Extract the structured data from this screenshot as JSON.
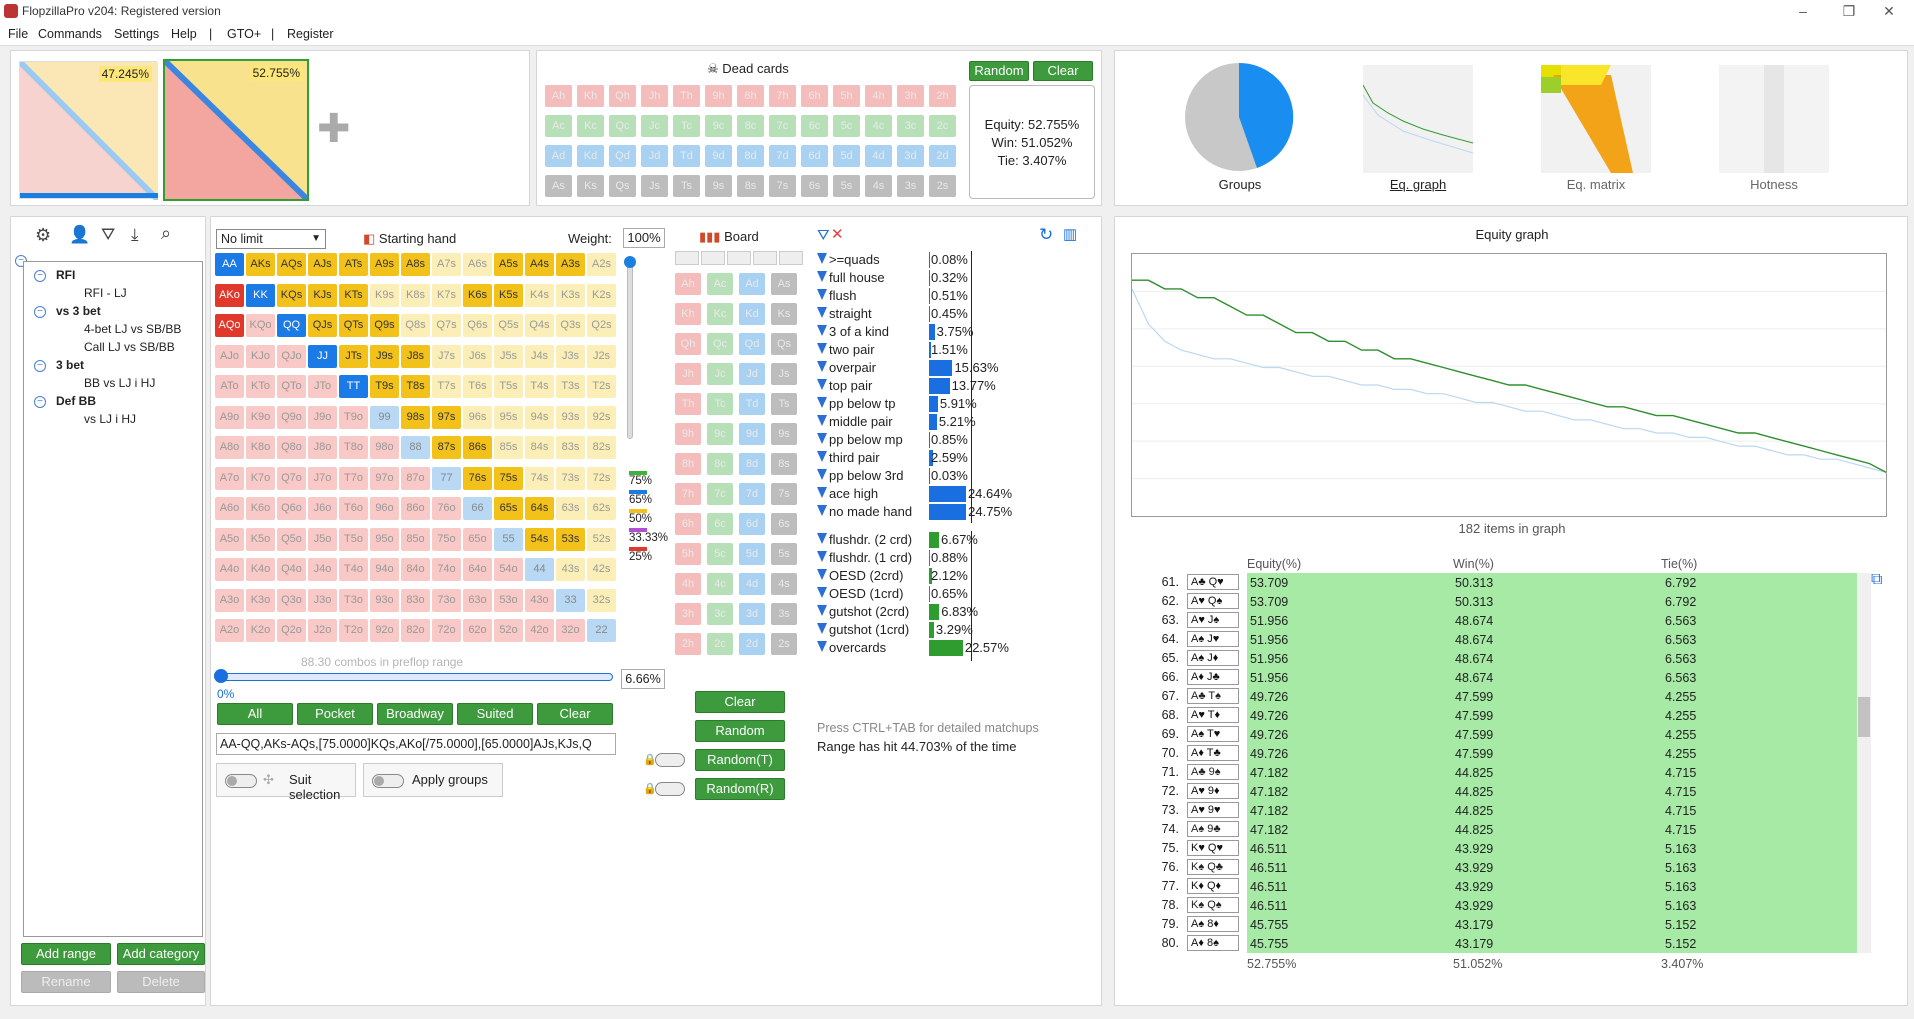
{
  "app": {
    "title": "FlopzillaPro v204: Registered version"
  },
  "menu": [
    "File",
    "Commands",
    "Settings",
    "Help",
    "|",
    "GTO+",
    "|",
    "Register"
  ],
  "ranges": {
    "range1_pct": "47.245%",
    "range2_pct": "52.755%"
  },
  "dead_cards": {
    "title": "Dead cards",
    "random": "Random",
    "clear": "Clear",
    "ranks": [
      "A",
      "K",
      "Q",
      "J",
      "T",
      "9",
      "8",
      "7",
      "6",
      "5",
      "4",
      "3",
      "2"
    ],
    "suits": [
      "h",
      "c",
      "d",
      "s"
    ]
  },
  "equity_box": {
    "equity": "Equity: 52.755%",
    "win": "Win: 51.052%",
    "tie": "Tie: 3.407%"
  },
  "views": {
    "groups": "Groups",
    "eq_graph": "Eq. graph",
    "eq_matrix": "Eq. matrix",
    "hotness": "Hotness"
  },
  "tree": {
    "items": [
      {
        "label": "RFI",
        "bold": true,
        "level": 0
      },
      {
        "label": "RFI - LJ",
        "bold": false,
        "level": 1
      },
      {
        "label": "vs 3 bet",
        "bold": true,
        "level": 0
      },
      {
        "label": "4-bet LJ vs SB/BB",
        "bold": false,
        "level": 1
      },
      {
        "label": "Call LJ vs SB/BB",
        "bold": false,
        "level": 1
      },
      {
        "label": "3 bet",
        "bold": true,
        "level": 0
      },
      {
        "label": "BB vs LJ i HJ",
        "bold": false,
        "level": 1
      },
      {
        "label": "Def BB",
        "bold": true,
        "level": 0
      },
      {
        "label": "vs LJ i HJ",
        "bold": false,
        "level": 1
      }
    ],
    "add_range": "Add range",
    "add_category": "Add category",
    "rename": "Rename",
    "delete": "Delete"
  },
  "matrix": {
    "game": "No limit",
    "starting_hand": "Starting hand",
    "weight_label": "Weight:",
    "weight": "100%",
    "combos_text": "88.30 combos in preflop range",
    "slider_min": "0%",
    "slider_value": "6.66%",
    "legend": [
      "75%",
      "65%",
      "50%",
      "33.33%",
      "25%"
    ],
    "buttons": {
      "all": "All",
      "pocket": "Pocket",
      "broadway": "Broadway",
      "suited": "Suited",
      "clear": "Clear"
    },
    "range_string": "AA-QQ,AKs-AQs,[75.0000]KQs,AKo[/75.0000],[65.0000]AJs,KJs,Q",
    "suit_selection": "Suit selection",
    "apply_groups": "Apply groups"
  },
  "board": {
    "title": "Board",
    "clear": "Clear",
    "random": "Random",
    "random_t": "Random(T)",
    "random_r": "Random(R)"
  },
  "stats": {
    "made": [
      {
        "label": ">=quads",
        "pct": "0.08%",
        "v": 0.08
      },
      {
        "label": "full house",
        "pct": "0.32%",
        "v": 0.32
      },
      {
        "label": "flush",
        "pct": "0.51%",
        "v": 0.51
      },
      {
        "label": "straight",
        "pct": "0.45%",
        "v": 0.45
      },
      {
        "label": "3 of a kind",
        "pct": "3.75%",
        "v": 3.75
      },
      {
        "label": "two pair",
        "pct": "1.51%",
        "v": 1.51
      },
      {
        "label": "overpair",
        "pct": "15.63%",
        "v": 15.63
      },
      {
        "label": "top pair",
        "pct": "13.77%",
        "v": 13.77
      },
      {
        "label": "pp below tp",
        "pct": "5.91%",
        "v": 5.91
      },
      {
        "label": "middle pair",
        "pct": "5.21%",
        "v": 5.21
      },
      {
        "label": "pp below mp",
        "pct": "0.85%",
        "v": 0.85
      },
      {
        "label": "third pair",
        "pct": "2.59%",
        "v": 2.59
      },
      {
        "label": "pp below 3rd",
        "pct": "0.03%",
        "v": 0.03
      },
      {
        "label": "ace high",
        "pct": "24.64%",
        "v": 24.64
      },
      {
        "label": "no made hand",
        "pct": "24.75%",
        "v": 24.75
      }
    ],
    "draws": [
      {
        "label": "flushdr. (2 crd)",
        "pct": "6.67%",
        "v": 6.67
      },
      {
        "label": "flushdr. (1 crd)",
        "pct": "0.88%",
        "v": 0.88
      },
      {
        "label": "OESD (2crd)",
        "pct": "2.12%",
        "v": 2.12
      },
      {
        "label": "OESD (1crd)",
        "pct": "0.65%",
        "v": 0.65
      },
      {
        "label": "gutshot (2crd)",
        "pct": "6.83%",
        "v": 6.83
      },
      {
        "label": "gutshot (1crd)",
        "pct": "3.29%",
        "v": 3.29
      },
      {
        "label": "overcards",
        "pct": "22.57%",
        "v": 22.57
      }
    ],
    "hint": "Press CTRL+TAB for detailed matchups",
    "hit": "Range has hit 44.703% of the time"
  },
  "graph": {
    "title": "Equity graph",
    "items_text": "182 items in graph",
    "line_dark": [
      94,
      94,
      92,
      92,
      90,
      90,
      88,
      86,
      86,
      84,
      82,
      82,
      80,
      80,
      78,
      78,
      76,
      76,
      75,
      74,
      73,
      72,
      71,
      70,
      70,
      69,
      68,
      67,
      66,
      65,
      65,
      64,
      63,
      63,
      62,
      61,
      60,
      59,
      59,
      58,
      57,
      56,
      55,
      54,
      53,
      52,
      50
    ],
    "line_light": [
      92,
      84,
      80,
      78,
      77,
      76,
      76,
      75,
      74,
      74,
      73,
      72,
      72,
      71,
      70,
      70,
      69,
      69,
      68,
      68,
      67,
      66,
      66,
      65,
      64,
      64,
      63,
      62,
      62,
      61,
      60,
      60,
      59,
      59,
      58,
      58,
      57,
      56,
      56,
      55,
      54,
      54,
      53,
      53,
      52,
      51,
      50
    ]
  },
  "table": {
    "headers": [
      "Equity(%)",
      "Win(%)",
      "Tie(%)"
    ],
    "rows": [
      {
        "no": "61.",
        "hand": "A♣ Q♥",
        "eq": "53.709",
        "win": "50.313",
        "tie": "6.792"
      },
      {
        "no": "62.",
        "hand": "A♥ Q♠",
        "eq": "53.709",
        "win": "50.313",
        "tie": "6.792"
      },
      {
        "no": "63.",
        "hand": "A♥ J♠",
        "eq": "51.956",
        "win": "48.674",
        "tie": "6.563"
      },
      {
        "no": "64.",
        "hand": "A♠ J♥",
        "eq": "51.956",
        "win": "48.674",
        "tie": "6.563"
      },
      {
        "no": "65.",
        "hand": "A♠ J♦",
        "eq": "51.956",
        "win": "48.674",
        "tie": "6.563"
      },
      {
        "no": "66.",
        "hand": "A♦ J♣",
        "eq": "51.956",
        "win": "48.674",
        "tie": "6.563"
      },
      {
        "no": "67.",
        "hand": "A♣ T♠",
        "eq": "49.726",
        "win": "47.599",
        "tie": "4.255"
      },
      {
        "no": "68.",
        "hand": "A♥ T♦",
        "eq": "49.726",
        "win": "47.599",
        "tie": "4.255"
      },
      {
        "no": "69.",
        "hand": "A♠ T♥",
        "eq": "49.726",
        "win": "47.599",
        "tie": "4.255"
      },
      {
        "no": "70.",
        "hand": "A♦ T♣",
        "eq": "49.726",
        "win": "47.599",
        "tie": "4.255"
      },
      {
        "no": "71.",
        "hand": "A♣ 9♠",
        "eq": "47.182",
        "win": "44.825",
        "tie": "4.715"
      },
      {
        "no": "72.",
        "hand": "A♥ 9♦",
        "eq": "47.182",
        "win": "44.825",
        "tie": "4.715"
      },
      {
        "no": "73.",
        "hand": "A♥ 9♥",
        "eq": "47.182",
        "win": "44.825",
        "tie": "4.715"
      },
      {
        "no": "74.",
        "hand": "A♠ 9♣",
        "eq": "47.182",
        "win": "44.825",
        "tie": "4.715"
      },
      {
        "no": "75.",
        "hand": "K♥ Q♥",
        "eq": "46.511",
        "win": "43.929",
        "tie": "5.163"
      },
      {
        "no": "76.",
        "hand": "K♠ Q♣",
        "eq": "46.511",
        "win": "43.929",
        "tie": "5.163"
      },
      {
        "no": "77.",
        "hand": "K♦ Q♦",
        "eq": "46.511",
        "win": "43.929",
        "tie": "5.163"
      },
      {
        "no": "78.",
        "hand": "K♠ Q♠",
        "eq": "46.511",
        "win": "43.929",
        "tie": "5.163"
      },
      {
        "no": "79.",
        "hand": "A♠ 8♦",
        "eq": "45.755",
        "win": "43.179",
        "tie": "5.152"
      },
      {
        "no": "80.",
        "hand": "A♦ 8♠",
        "eq": "45.755",
        "win": "43.179",
        "tie": "5.152"
      }
    ],
    "totals": {
      "eq": "52.755%",
      "win": "51.052%",
      "tie": "3.407%"
    }
  },
  "colors": {
    "green_button": "#3d9a3d",
    "blue_selected": "#1a6fe0",
    "gold": "#f5c518",
    "pink": "#f5bcbc"
  }
}
